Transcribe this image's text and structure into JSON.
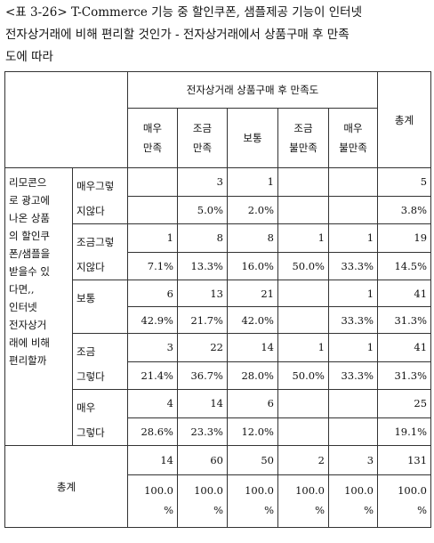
{
  "caption": {
    "line1": "<표 3-26> T-Commerce 기능 중 할인쿠폰, 샘플제공 기능이 인터넷",
    "line2": "전자상거래에 비해 편리할 것인가 - 전자상거래에서 상품구매 후 만족",
    "line3": "도에 따라"
  },
  "table": {
    "group_header": "전자상거래 상품구매 후 만족도",
    "total_header": "총계",
    "columns": [
      {
        "l1": "매우",
        "l2": "만족"
      },
      {
        "l1": "조금",
        "l2": "만족"
      },
      {
        "l1": "보통",
        "l2": ""
      },
      {
        "l1": "조금",
        "l2": "불만족"
      },
      {
        "l1": "매우",
        "l2": "불만족"
      }
    ],
    "row_label": [
      "리모콘으",
      "로 광고에",
      "나온 상품",
      "의 할인쿠",
      "폰/샘플을",
      "받을수 있",
      "다면,,",
      "인터넷",
      "전자상거",
      "래에 비해",
      "편리할까"
    ],
    "rows": [
      {
        "l1": "매우그렇",
        "l2": "지않다",
        "counts": [
          "",
          "3",
          "1",
          "",
          "",
          "5"
        ],
        "pcts": [
          "",
          "5.0%",
          "2.0%",
          "",
          "",
          "3.8%"
        ]
      },
      {
        "l1": "조금그렇",
        "l2": "지않다",
        "counts": [
          "1",
          "8",
          "8",
          "1",
          "1",
          "19"
        ],
        "pcts": [
          "7.1%",
          "13.3%",
          "16.0%",
          "50.0%",
          "33.3%",
          "14.5%"
        ]
      },
      {
        "l1": "보통",
        "l2": "",
        "counts": [
          "6",
          "13",
          "21",
          "",
          "1",
          "41"
        ],
        "pcts": [
          "42.9%",
          "21.7%",
          "42.0%",
          "",
          "33.3%",
          "31.3%"
        ]
      },
      {
        "l1": "조금",
        "l2": "그렇다",
        "counts": [
          "3",
          "22",
          "14",
          "1",
          "1",
          "41"
        ],
        "pcts": [
          "21.4%",
          "36.7%",
          "28.0%",
          "50.0%",
          "33.3%",
          "31.3%"
        ]
      },
      {
        "l1": "매우",
        "l2": "그렇다",
        "counts": [
          "4",
          "14",
          "6",
          "",
          "",
          "25"
        ],
        "pcts": [
          "28.6%",
          "23.3%",
          "12.0%",
          "",
          "",
          "19.1%"
        ]
      }
    ],
    "total_label": "총계",
    "total_counts": [
      "14",
      "60",
      "50",
      "2",
      "3",
      "131"
    ],
    "total_pct_value": "100.0",
    "total_pct_unit": "%"
  }
}
